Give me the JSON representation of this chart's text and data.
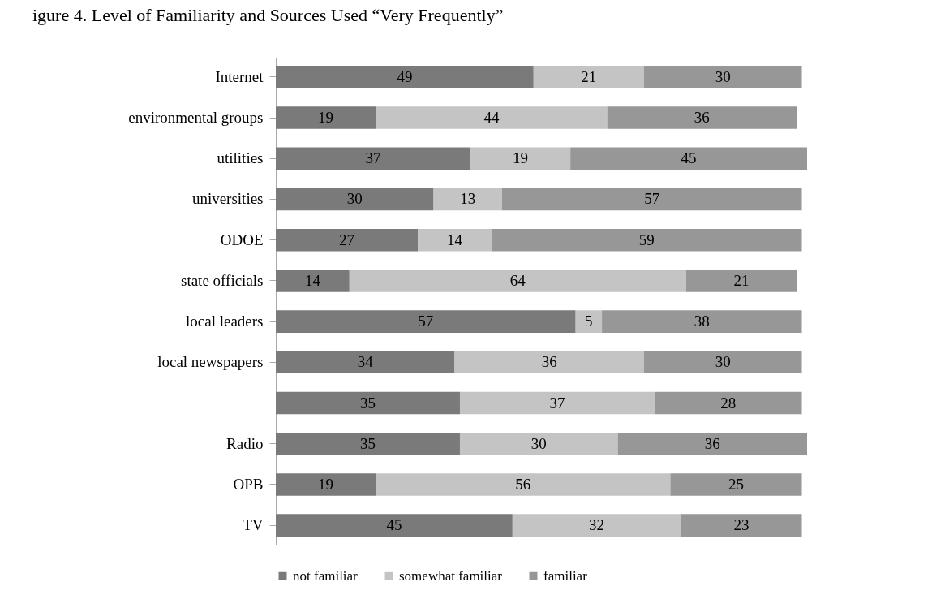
{
  "chart_data": {
    "type": "bar",
    "orientation": "horizontal",
    "stacked": true,
    "data_labels": true,
    "legend": "bottom",
    "grid": false,
    "title": "igure 4. Level of Familiarity and Sources Used “Very Frequently”",
    "categories": [
      "Internet",
      "environmental groups",
      "utilities",
      "universities",
      "ODOE",
      "state officials",
      "local leaders",
      "local newspapers",
      null,
      "Radio",
      "OPB",
      "TV"
    ],
    "series": [
      {
        "name": "not familiar",
        "color": "#7a7a7a",
        "values": [
          49,
          19,
          37,
          30,
          27,
          14,
          57,
          34,
          35,
          35,
          19,
          45
        ]
      },
      {
        "name": "somewhat familiar",
        "color": "#c4c4c4",
        "values": [
          21,
          44,
          19,
          13,
          14,
          64,
          5,
          36,
          37,
          30,
          56,
          32
        ]
      },
      {
        "name": "familiar",
        "color": "#979797",
        "values": [
          30,
          36,
          45,
          57,
          59,
          21,
          38,
          30,
          28,
          36,
          25,
          23
        ]
      }
    ]
  }
}
